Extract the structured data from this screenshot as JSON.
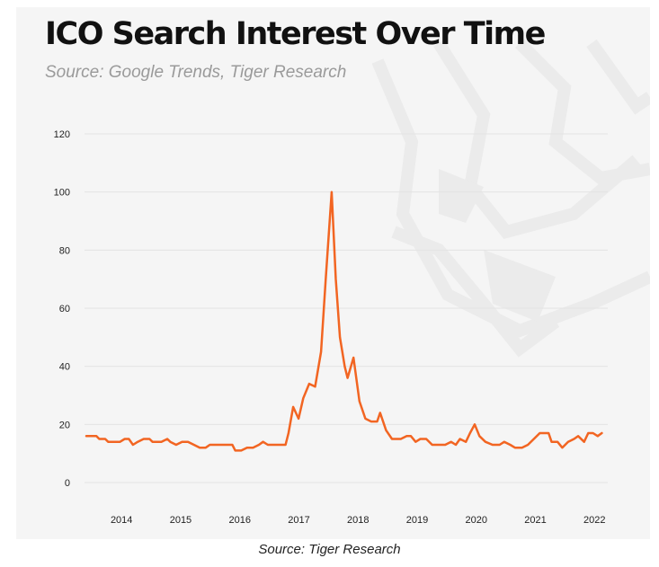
{
  "title": "ICO Search Interest Over Time",
  "subtitle": "Source: Google Trends, Tiger Research",
  "caption": "Source: Tiger Research",
  "colors": {
    "line": "#f26522",
    "grid": "#e3e3e3",
    "panel": "#f5f5f5",
    "watermark": "#ebebeb"
  },
  "chart_data": {
    "type": "line",
    "title": "ICO Search Interest Over Time",
    "xlabel": "",
    "ylabel": "",
    "ylim": [
      0,
      120
    ],
    "y_ticks": [
      0,
      20,
      40,
      60,
      80,
      100,
      120
    ],
    "x_ticks": [
      "2014",
      "2015",
      "2016",
      "2017",
      "2018",
      "2019",
      "2020",
      "2021",
      "2022"
    ],
    "xlim": [
      2013.6,
      2022.45
    ],
    "grid": "horizontal",
    "legend": "none",
    "series": [
      {
        "points": [
          [
            2013.63,
            16
          ],
          [
            2013.8,
            16
          ],
          [
            2013.85,
            15
          ],
          [
            2013.95,
            15
          ],
          [
            2014.0,
            14
          ],
          [
            2014.2,
            14
          ],
          [
            2014.28,
            15
          ],
          [
            2014.35,
            15
          ],
          [
            2014.42,
            13
          ],
          [
            2014.5,
            14
          ],
          [
            2014.6,
            15
          ],
          [
            2014.7,
            15
          ],
          [
            2014.75,
            14
          ],
          [
            2014.9,
            14
          ],
          [
            2015.0,
            15
          ],
          [
            2015.05,
            14
          ],
          [
            2015.15,
            13
          ],
          [
            2015.25,
            14
          ],
          [
            2015.35,
            14
          ],
          [
            2015.45,
            13
          ],
          [
            2015.55,
            12
          ],
          [
            2015.65,
            12
          ],
          [
            2015.72,
            13
          ],
          [
            2016.1,
            13
          ],
          [
            2016.15,
            11
          ],
          [
            2016.25,
            11
          ],
          [
            2016.35,
            12
          ],
          [
            2016.45,
            12
          ],
          [
            2016.55,
            13
          ],
          [
            2016.62,
            14
          ],
          [
            2016.7,
            13
          ],
          [
            2017.0,
            13
          ],
          [
            2017.05,
            17
          ],
          [
            2017.13,
            26
          ],
          [
            2017.22,
            22
          ],
          [
            2017.3,
            29
          ],
          [
            2017.4,
            34
          ],
          [
            2017.5,
            33
          ],
          [
            2017.6,
            45
          ],
          [
            2017.68,
            70
          ],
          [
            2017.78,
            100
          ],
          [
            2017.85,
            70
          ],
          [
            2017.92,
            50
          ],
          [
            2018.0,
            40
          ],
          [
            2018.05,
            36
          ],
          [
            2018.15,
            43
          ],
          [
            2018.25,
            28
          ],
          [
            2018.35,
            22
          ],
          [
            2018.45,
            21
          ],
          [
            2018.55,
            21
          ],
          [
            2018.6,
            24
          ],
          [
            2018.7,
            18
          ],
          [
            2018.8,
            15
          ],
          [
            2018.95,
            15
          ],
          [
            2019.05,
            16
          ],
          [
            2019.12,
            16
          ],
          [
            2019.2,
            14
          ],
          [
            2019.28,
            15
          ],
          [
            2019.38,
            15
          ],
          [
            2019.48,
            13
          ],
          [
            2019.6,
            13
          ],
          [
            2019.7,
            13
          ],
          [
            2019.8,
            14
          ],
          [
            2019.88,
            13
          ],
          [
            2019.95,
            15
          ],
          [
            2020.05,
            14
          ],
          [
            2020.12,
            17
          ],
          [
            2020.2,
            20
          ],
          [
            2020.28,
            16
          ],
          [
            2020.38,
            14
          ],
          [
            2020.5,
            13
          ],
          [
            2020.62,
            13
          ],
          [
            2020.7,
            14
          ],
          [
            2020.8,
            13
          ],
          [
            2020.88,
            12
          ],
          [
            2021.0,
            12
          ],
          [
            2021.1,
            13
          ],
          [
            2021.2,
            15
          ],
          [
            2021.3,
            17
          ],
          [
            2021.45,
            17
          ],
          [
            2021.5,
            14
          ],
          [
            2021.6,
            14
          ],
          [
            2021.68,
            12
          ],
          [
            2021.78,
            14
          ],
          [
            2021.88,
            15
          ],
          [
            2021.95,
            16
          ],
          [
            2022.05,
            14
          ],
          [
            2022.12,
            17
          ],
          [
            2022.2,
            17
          ],
          [
            2022.28,
            16
          ],
          [
            2022.35,
            17
          ]
        ]
      }
    ]
  }
}
